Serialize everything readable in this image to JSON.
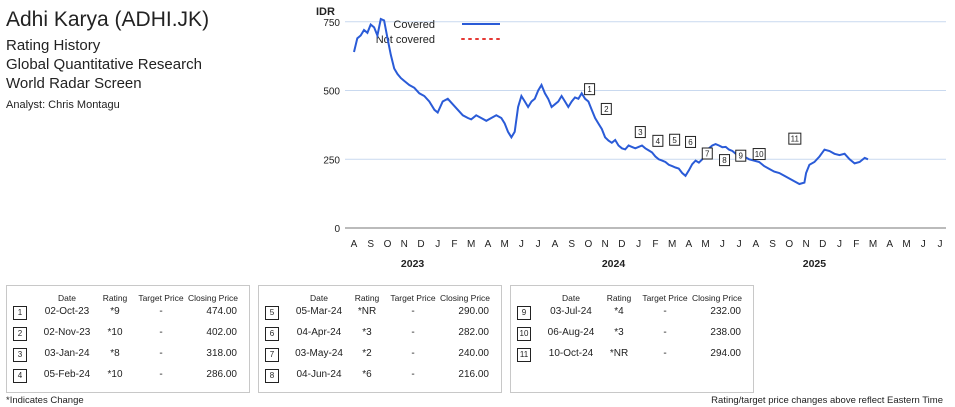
{
  "header": {
    "title": "Adhi Karya (ADHI.JK)",
    "lines": [
      "Rating History",
      "Global Quantitative Research",
      "World Radar Screen"
    ],
    "analyst": "Analyst: Chris Montagu"
  },
  "chart_data": {
    "type": "line",
    "ylabel": "IDR",
    "yticks": [
      0,
      250,
      500,
      750
    ],
    "ylim": [
      0,
      800
    ],
    "month_labels": [
      "A",
      "S",
      "O",
      "N",
      "D",
      "J",
      "F",
      "M",
      "A",
      "M",
      "J",
      "J",
      "A",
      "S",
      "O",
      "N",
      "D",
      "J",
      "F",
      "M",
      "A",
      "M",
      "J",
      "J",
      "A",
      "S",
      "O",
      "N",
      "D",
      "J",
      "F",
      "M",
      "A",
      "M",
      "J",
      "J"
    ],
    "year_labels": [
      {
        "label": "2023",
        "month_index": 3.5
      },
      {
        "label": "2024",
        "month_index": 15.5
      },
      {
        "label": "2025",
        "month_index": 27.5
      }
    ],
    "legend": [
      {
        "name": "Covered",
        "style": "solid",
        "color": "#2a5bd7"
      },
      {
        "name": "Not covered",
        "style": "dotted",
        "color": "#e53935"
      }
    ],
    "grid": true,
    "series": [
      {
        "name": "Covered",
        "color": "#2a5bd7",
        "points": [
          [
            0.0,
            640
          ],
          [
            0.2,
            690
          ],
          [
            0.4,
            700
          ],
          [
            0.6,
            720
          ],
          [
            0.8,
            710
          ],
          [
            1.0,
            740
          ],
          [
            1.2,
            730
          ],
          [
            1.4,
            700
          ],
          [
            1.6,
            760
          ],
          [
            1.8,
            755
          ],
          [
            2.0,
            690
          ],
          [
            2.2,
            630
          ],
          [
            2.4,
            580
          ],
          [
            2.6,
            560
          ],
          [
            2.8,
            545
          ],
          [
            3.0,
            535
          ],
          [
            3.3,
            520
          ],
          [
            3.6,
            510
          ],
          [
            3.9,
            490
          ],
          [
            4.2,
            480
          ],
          [
            4.5,
            460
          ],
          [
            4.8,
            430
          ],
          [
            5.0,
            420
          ],
          [
            5.3,
            460
          ],
          [
            5.6,
            470
          ],
          [
            5.9,
            450
          ],
          [
            6.2,
            430
          ],
          [
            6.5,
            410
          ],
          [
            6.8,
            400
          ],
          [
            7.0,
            395
          ],
          [
            7.3,
            410
          ],
          [
            7.6,
            400
          ],
          [
            7.9,
            390
          ],
          [
            8.2,
            400
          ],
          [
            8.5,
            410
          ],
          [
            8.8,
            400
          ],
          [
            9.0,
            380
          ],
          [
            9.2,
            350
          ],
          [
            9.4,
            330
          ],
          [
            9.6,
            350
          ],
          [
            9.8,
            440
          ],
          [
            10.0,
            480
          ],
          [
            10.2,
            460
          ],
          [
            10.4,
            440
          ],
          [
            10.6,
            460
          ],
          [
            10.8,
            470
          ],
          [
            11.0,
            500
          ],
          [
            11.2,
            520
          ],
          [
            11.4,
            490
          ],
          [
            11.6,
            470
          ],
          [
            11.8,
            440
          ],
          [
            12.0,
            450
          ],
          [
            12.2,
            460
          ],
          [
            12.4,
            480
          ],
          [
            12.6,
            460
          ],
          [
            12.8,
            440
          ],
          [
            13.0,
            460
          ],
          [
            13.2,
            475
          ],
          [
            13.4,
            470
          ],
          [
            13.6,
            490
          ],
          [
            13.8,
            470
          ],
          [
            14.0,
            460
          ],
          [
            14.2,
            430
          ],
          [
            14.4,
            400
          ],
          [
            14.6,
            380
          ],
          [
            14.8,
            360
          ],
          [
            15.0,
            330
          ],
          [
            15.2,
            318
          ],
          [
            15.4,
            310
          ],
          [
            15.6,
            320
          ],
          [
            15.8,
            300
          ],
          [
            16.0,
            290
          ],
          [
            16.2,
            286
          ],
          [
            16.4,
            300
          ],
          [
            16.6,
            295
          ],
          [
            16.8,
            290
          ],
          [
            17.0,
            295
          ],
          [
            17.2,
            300
          ],
          [
            17.4,
            290
          ],
          [
            17.6,
            282
          ],
          [
            17.8,
            275
          ],
          [
            18.0,
            260
          ],
          [
            18.2,
            250
          ],
          [
            18.4,
            245
          ],
          [
            18.6,
            240
          ],
          [
            18.8,
            230
          ],
          [
            19.0,
            225
          ],
          [
            19.2,
            220
          ],
          [
            19.4,
            216
          ],
          [
            19.6,
            200
          ],
          [
            19.8,
            190
          ],
          [
            20.0,
            210
          ],
          [
            20.2,
            232
          ],
          [
            20.4,
            245
          ],
          [
            20.6,
            238
          ],
          [
            20.8,
            250
          ],
          [
            21.0,
            270
          ],
          [
            21.2,
            290
          ],
          [
            21.4,
            300
          ],
          [
            21.6,
            305
          ],
          [
            21.8,
            300
          ],
          [
            22.0,
            294
          ],
          [
            22.2,
            295
          ],
          [
            22.4,
            285
          ],
          [
            22.6,
            280
          ],
          [
            22.8,
            270
          ],
          [
            23.0,
            265
          ],
          [
            23.3,
            260
          ],
          [
            23.6,
            250
          ],
          [
            23.9,
            245
          ],
          [
            24.2,
            240
          ],
          [
            24.5,
            225
          ],
          [
            24.8,
            215
          ],
          [
            25.1,
            205
          ],
          [
            25.4,
            200
          ],
          [
            25.7,
            190
          ],
          [
            26.0,
            180
          ],
          [
            26.3,
            170
          ],
          [
            26.6,
            160
          ],
          [
            26.9,
            165
          ],
          [
            27.0,
            200
          ],
          [
            27.2,
            230
          ],
          [
            27.5,
            240
          ],
          [
            27.8,
            260
          ],
          [
            28.1,
            285
          ],
          [
            28.4,
            280
          ],
          [
            28.7,
            270
          ],
          [
            29.0,
            265
          ],
          [
            29.3,
            270
          ],
          [
            29.6,
            250
          ],
          [
            29.9,
            235
          ],
          [
            30.2,
            240
          ],
          [
            30.5,
            255
          ],
          [
            30.7,
            250
          ]
        ]
      }
    ],
    "events": [
      {
        "index": "1",
        "month_pos": 14.07,
        "price": 474
      },
      {
        "index": "2",
        "month_pos": 15.07,
        "price": 402
      },
      {
        "index": "3",
        "month_pos": 17.1,
        "price": 318
      },
      {
        "index": "4",
        "month_pos": 18.15,
        "price": 286
      },
      {
        "index": "5",
        "month_pos": 19.15,
        "price": 290
      },
      {
        "index": "6",
        "month_pos": 20.1,
        "price": 282
      },
      {
        "index": "7",
        "month_pos": 21.1,
        "price": 240
      },
      {
        "index": "8",
        "month_pos": 22.13,
        "price": 216
      },
      {
        "index": "9",
        "month_pos": 23.1,
        "price": 232
      },
      {
        "index": "10",
        "month_pos": 24.2,
        "price": 238
      },
      {
        "index": "11",
        "month_pos": 26.33,
        "price": 294
      }
    ]
  },
  "tables": [
    {
      "headers": {
        "date": "Date",
        "rating": "Rating",
        "target": "Target Price",
        "close": "Closing Price"
      },
      "rows": [
        {
          "index": "1",
          "date": "02-Oct-23",
          "rating": "*9",
          "target": "-",
          "close": "474.00"
        },
        {
          "index": "2",
          "date": "02-Nov-23",
          "rating": "*10",
          "target": "-",
          "close": "402.00"
        },
        {
          "index": "3",
          "date": "03-Jan-24",
          "rating": "*8",
          "target": "-",
          "close": "318.00"
        },
        {
          "index": "4",
          "date": "05-Feb-24",
          "rating": "*10",
          "target": "-",
          "close": "286.00"
        }
      ]
    },
    {
      "headers": {
        "date": "Date",
        "rating": "Rating",
        "target": "Target Price",
        "close": "Closing Price"
      },
      "rows": [
        {
          "index": "5",
          "date": "05-Mar-24",
          "rating": "*NR",
          "target": "-",
          "close": "290.00"
        },
        {
          "index": "6",
          "date": "04-Apr-24",
          "rating": "*3",
          "target": "-",
          "close": "282.00"
        },
        {
          "index": "7",
          "date": "03-May-24",
          "rating": "*2",
          "target": "-",
          "close": "240.00"
        },
        {
          "index": "8",
          "date": "04-Jun-24",
          "rating": "*6",
          "target": "-",
          "close": "216.00"
        }
      ]
    },
    {
      "headers": {
        "date": "Date",
        "rating": "Rating",
        "target": "Target Price",
        "close": "Closing Price"
      },
      "rows": [
        {
          "index": "9",
          "date": "03-Jul-24",
          "rating": "*4",
          "target": "-",
          "close": "232.00"
        },
        {
          "index": "10",
          "date": "06-Aug-24",
          "rating": "*3",
          "target": "-",
          "close": "238.00"
        },
        {
          "index": "11",
          "date": "10-Oct-24",
          "rating": "*NR",
          "target": "-",
          "close": "294.00"
        }
      ]
    }
  ],
  "footer": {
    "left": "*Indicates Change",
    "right": "Rating/target price changes above reflect Eastern Time"
  }
}
